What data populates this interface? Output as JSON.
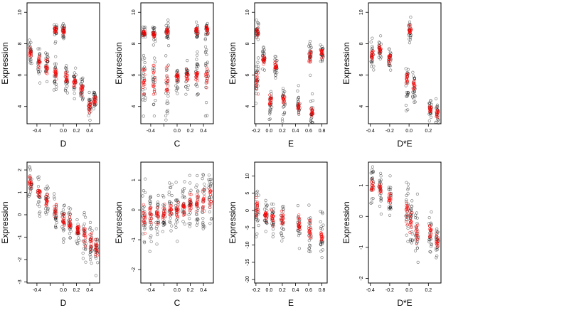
{
  "chart_data": [
    {
      "type": "scatter",
      "xlabel": "D",
      "ylabel": "Expression",
      "xlim": [
        -0.55,
        0.55
      ],
      "ylim": [
        2.9,
        10.6
      ],
      "xticks": [
        {
          "v": -0.4,
          "label": "-0.4"
        },
        {
          "v": -0.2,
          "label": ""
        },
        {
          "v": 0.0,
          "label": "0.0"
        },
        {
          "v": 0.2,
          "label": "0.2"
        },
        {
          "v": 0.4,
          "label": "0.4"
        }
      ],
      "yticks": [
        {
          "v": 4,
          "label": "4"
        },
        {
          "v": 6,
          "label": "6"
        },
        {
          "v": 8,
          "label": "8"
        },
        {
          "v": 10,
          "label": "10"
        }
      ],
      "groups": [
        {
          "x": -0.5,
          "mean": 7.4,
          "sd": 0.45
        },
        {
          "x": -0.37,
          "mean": 6.9,
          "sd": 0.55
        },
        {
          "x": -0.25,
          "mean": 6.5,
          "sd": 0.6
        },
        {
          "x": -0.12,
          "mean": 6.1,
          "sd": 0.55
        },
        {
          "x": -0.12,
          "mean": 8.9,
          "sd": 0.3
        },
        {
          "x": 0.0,
          "mean": 8.8,
          "sd": 0.3
        },
        {
          "x": 0.05,
          "mean": 5.8,
          "sd": 0.5
        },
        {
          "x": 0.17,
          "mean": 5.6,
          "sd": 0.5
        },
        {
          "x": 0.28,
          "mean": 5.1,
          "sd": 0.5
        },
        {
          "x": 0.4,
          "mean": 3.9,
          "sd": 0.45
        },
        {
          "x": 0.48,
          "mean": 4.3,
          "sd": 0.4
        }
      ]
    },
    {
      "type": "scatter",
      "xlabel": "C",
      "ylabel": "Expression",
      "xlim": [
        -0.55,
        0.55
      ],
      "ylim": [
        2.9,
        10.6
      ],
      "xticks": [
        {
          "v": -0.4,
          "label": "-0.4"
        },
        {
          "v": -0.2,
          "label": ""
        },
        {
          "v": 0.0,
          "label": "0.0"
        },
        {
          "v": 0.2,
          "label": "0.2"
        },
        {
          "v": 0.4,
          "label": "0.4"
        }
      ],
      "yticks": [
        {
          "v": 4,
          "label": "4"
        },
        {
          "v": 6,
          "label": "6"
        },
        {
          "v": 8,
          "label": "8"
        },
        {
          "v": 10,
          "label": "10"
        }
      ],
      "groups": [
        {
          "x": -0.5,
          "mean": 5.6,
          "sd": 1.2
        },
        {
          "x": -0.5,
          "mean": 8.7,
          "sd": 0.25
        },
        {
          "x": -0.35,
          "mean": 5.6,
          "sd": 1.2
        },
        {
          "x": -0.35,
          "mean": 8.6,
          "sd": 0.25
        },
        {
          "x": -0.15,
          "mean": 5.5,
          "sd": 1.1
        },
        {
          "x": -0.15,
          "mean": 8.8,
          "sd": 0.25
        },
        {
          "x": 0.0,
          "mean": 5.9,
          "sd": 0.5
        },
        {
          "x": 0.15,
          "mean": 5.9,
          "sd": 0.6
        },
        {
          "x": 0.3,
          "mean": 6.0,
          "sd": 0.8
        },
        {
          "x": 0.3,
          "mean": 8.8,
          "sd": 0.3
        },
        {
          "x": 0.45,
          "mean": 6.1,
          "sd": 1.2
        },
        {
          "x": 0.45,
          "mean": 8.9,
          "sd": 0.3
        }
      ]
    },
    {
      "type": "scatter",
      "xlabel": "E",
      "ylabel": "Expression",
      "xlim": [
        -0.22,
        0.88
      ],
      "ylim": [
        2.9,
        10.6
      ],
      "xticks": [
        {
          "v": -0.2,
          "label": "-0.2"
        },
        {
          "v": 0.0,
          "label": "0.0"
        },
        {
          "v": 0.2,
          "label": "0.2"
        },
        {
          "v": 0.4,
          "label": "0.4"
        },
        {
          "v": 0.6,
          "label": "0.6"
        },
        {
          "v": 0.8,
          "label": "0.8"
        }
      ],
      "yticks": [
        {
          "v": 4,
          "label": "4"
        },
        {
          "v": 6,
          "label": "6"
        },
        {
          "v": 8,
          "label": "8"
        },
        {
          "v": 10,
          "label": "10"
        }
      ],
      "groups": [
        {
          "x": -0.18,
          "mean": 5.6,
          "sd": 0.8
        },
        {
          "x": -0.18,
          "mean": 8.8,
          "sd": 0.35
        },
        {
          "x": -0.08,
          "mean": 7.0,
          "sd": 0.4
        },
        {
          "x": 0.02,
          "mean": 4.4,
          "sd": 0.5
        },
        {
          "x": 0.1,
          "mean": 6.6,
          "sd": 0.4
        },
        {
          "x": 0.22,
          "mean": 4.4,
          "sd": 0.5
        },
        {
          "x": 0.45,
          "mean": 3.9,
          "sd": 0.5
        },
        {
          "x": 0.62,
          "mean": 7.2,
          "sd": 0.5
        },
        {
          "x": 0.65,
          "mean": 3.6,
          "sd": 0.4
        },
        {
          "x": 0.8,
          "mean": 7.4,
          "sd": 0.35
        }
      ]
    },
    {
      "type": "scatter",
      "xlabel": "D*E",
      "ylabel": "Expression",
      "xlim": [
        -0.42,
        0.33
      ],
      "ylim": [
        2.9,
        10.6
      ],
      "xticks": [
        {
          "v": -0.4,
          "label": "-0.4"
        },
        {
          "v": -0.2,
          "label": "-0.2"
        },
        {
          "v": 0.0,
          "label": "0.0"
        },
        {
          "v": 0.2,
          "label": "0.2"
        }
      ],
      "yticks": [
        {
          "v": 4,
          "label": "4"
        },
        {
          "v": 6,
          "label": "6"
        },
        {
          "v": 8,
          "label": "8"
        },
        {
          "v": 10,
          "label": "10"
        }
      ],
      "groups": [
        {
          "x": -0.38,
          "mean": 7.3,
          "sd": 0.4
        },
        {
          "x": -0.3,
          "mean": 7.6,
          "sd": 0.4
        },
        {
          "x": -0.2,
          "mean": 7.0,
          "sd": 0.5
        },
        {
          "x": -0.02,
          "mean": 5.6,
          "sd": 0.8
        },
        {
          "x": 0.01,
          "mean": 8.8,
          "sd": 0.45
        },
        {
          "x": 0.05,
          "mean": 5.3,
          "sd": 0.7
        },
        {
          "x": 0.22,
          "mean": 3.9,
          "sd": 0.4
        },
        {
          "x": 0.29,
          "mean": 3.6,
          "sd": 0.4
        }
      ]
    },
    {
      "type": "scatter",
      "xlabel": "D",
      "ylabel": "Expression",
      "xlim": [
        -0.55,
        0.55
      ],
      "ylim": [
        -3.05,
        2.35
      ],
      "xticks": [
        {
          "v": -0.4,
          "label": "-0.4"
        },
        {
          "v": -0.2,
          "label": ""
        },
        {
          "v": 0.0,
          "label": "0.0"
        },
        {
          "v": 0.2,
          "label": "0.2"
        },
        {
          "v": 0.4,
          "label": "0.4"
        }
      ],
      "yticks": [
        {
          "v": -3,
          "label": "-3"
        },
        {
          "v": -2,
          "label": "-2"
        },
        {
          "v": -1,
          "label": "-1"
        },
        {
          "v": 0,
          "label": "0"
        },
        {
          "v": 1,
          "label": "1"
        },
        {
          "v": 2,
          "label": "2"
        }
      ],
      "groups": [
        {
          "x": -0.5,
          "mean": 1.4,
          "sd": 0.35
        },
        {
          "x": -0.37,
          "mean": 1.0,
          "sd": 0.4
        },
        {
          "x": -0.25,
          "mean": 0.6,
          "sd": 0.45
        },
        {
          "x": -0.12,
          "mean": 0.2,
          "sd": 0.45
        },
        {
          "x": 0.0,
          "mean": -0.2,
          "sd": 0.45
        },
        {
          "x": 0.1,
          "mean": -0.4,
          "sd": 0.45
        },
        {
          "x": 0.22,
          "mean": -0.7,
          "sd": 0.45
        },
        {
          "x": 0.32,
          "mean": -0.9,
          "sd": 0.5
        },
        {
          "x": 0.42,
          "mean": -1.3,
          "sd": 0.55
        },
        {
          "x": 0.5,
          "mean": -1.5,
          "sd": 0.5
        }
      ]
    },
    {
      "type": "scatter",
      "xlabel": "C",
      "ylabel": "Expression",
      "xlim": [
        -0.55,
        0.55
      ],
      "ylim": [
        -2.45,
        1.6
      ],
      "xticks": [
        {
          "v": -0.4,
          "label": "-0.4"
        },
        {
          "v": -0.2,
          "label": ""
        },
        {
          "v": 0.0,
          "label": "0.0"
        },
        {
          "v": 0.2,
          "label": "0.2"
        },
        {
          "v": 0.4,
          "label": "0.4"
        }
      ],
      "yticks": [
        {
          "v": -2,
          "label": "-2"
        },
        {
          "v": -1,
          "label": "-1"
        },
        {
          "v": 0,
          "label": "0"
        },
        {
          "v": 1,
          "label": "1"
        }
      ],
      "groups": [
        {
          "x": -0.5,
          "mean": -0.3,
          "sd": 0.5
        },
        {
          "x": -0.4,
          "mean": -0.2,
          "sd": 0.45
        },
        {
          "x": -0.3,
          "mean": -0.15,
          "sd": 0.4
        },
        {
          "x": -0.2,
          "mean": -0.1,
          "sd": 0.4
        },
        {
          "x": -0.1,
          "mean": 0.0,
          "sd": 0.4
        },
        {
          "x": 0.0,
          "mean": 0.05,
          "sd": 0.4
        },
        {
          "x": 0.1,
          "mean": 0.1,
          "sd": 0.4
        },
        {
          "x": 0.2,
          "mean": 0.2,
          "sd": 0.45
        },
        {
          "x": 0.3,
          "mean": 0.25,
          "sd": 0.45
        },
        {
          "x": 0.4,
          "mean": 0.3,
          "sd": 0.5
        },
        {
          "x": 0.5,
          "mean": 0.4,
          "sd": 0.5
        }
      ]
    },
    {
      "type": "scatter",
      "xlabel": "E",
      "ylabel": "Expression",
      "xlim": [
        -0.22,
        0.88
      ],
      "ylim": [
        -21,
        14
      ],
      "xticks": [
        {
          "v": -0.2,
          "label": "-0.2"
        },
        {
          "v": 0.0,
          "label": "0.0"
        },
        {
          "v": 0.2,
          "label": "0.2"
        },
        {
          "v": 0.4,
          "label": "0.4"
        },
        {
          "v": 0.6,
          "label": "0.6"
        },
        {
          "v": 0.8,
          "label": "0.8"
        }
      ],
      "yticks": [
        {
          "v": -20,
          "label": "-20"
        },
        {
          "v": -15,
          "label": "-15"
        },
        {
          "v": -10,
          "label": "-10"
        },
        {
          "v": -5,
          "label": "-5"
        },
        {
          "v": 0,
          "label": "0"
        },
        {
          "v": 5,
          "label": "5"
        },
        {
          "v": 10,
          "label": "10"
        }
      ],
      "groups": [
        {
          "x": -0.18,
          "mean": 1.0,
          "sd": 4.5
        },
        {
          "x": -0.05,
          "mean": -1.0,
          "sd": 2.5
        },
        {
          "x": 0.05,
          "mean": -2.0,
          "sd": 3.0
        },
        {
          "x": 0.2,
          "mean": -2.5,
          "sd": 3.0
        },
        {
          "x": 0.45,
          "mean": -4.0,
          "sd": 3.0
        },
        {
          "x": 0.62,
          "mean": -5.5,
          "sd": 3.0
        },
        {
          "x": 0.8,
          "mean": -7.0,
          "sd": 3.0
        }
      ]
    },
    {
      "type": "scatter",
      "xlabel": "D*E",
      "ylabel": "Expression",
      "xlim": [
        -0.42,
        0.33
      ],
      "ylim": [
        -2.15,
        1.75
      ],
      "xticks": [
        {
          "v": -0.4,
          "label": "-0.4"
        },
        {
          "v": -0.2,
          "label": "-0.2"
        },
        {
          "v": 0.0,
          "label": "0.0"
        },
        {
          "v": 0.2,
          "label": "0.2"
        }
      ],
      "yticks": [
        {
          "v": -2,
          "label": "-2"
        },
        {
          "v": -1,
          "label": "-1"
        },
        {
          "v": 0,
          "label": "0"
        },
        {
          "v": 1,
          "label": "1"
        }
      ],
      "groups": [
        {
          "x": -0.38,
          "mean": 1.0,
          "sd": 0.4
        },
        {
          "x": -0.3,
          "mean": 0.9,
          "sd": 0.35
        },
        {
          "x": -0.2,
          "mean": 0.5,
          "sd": 0.4
        },
        {
          "x": -0.02,
          "mean": 0.2,
          "sd": 0.6
        },
        {
          "x": 0.02,
          "mean": -0.2,
          "sd": 0.5
        },
        {
          "x": 0.08,
          "mean": -0.5,
          "sd": 0.45
        },
        {
          "x": 0.22,
          "mean": -0.5,
          "sd": 0.35
        },
        {
          "x": 0.29,
          "mean": -0.8,
          "sd": 0.35
        }
      ]
    }
  ],
  "colors": {
    "observed": "#000000",
    "fitted": "#ff0000"
  }
}
